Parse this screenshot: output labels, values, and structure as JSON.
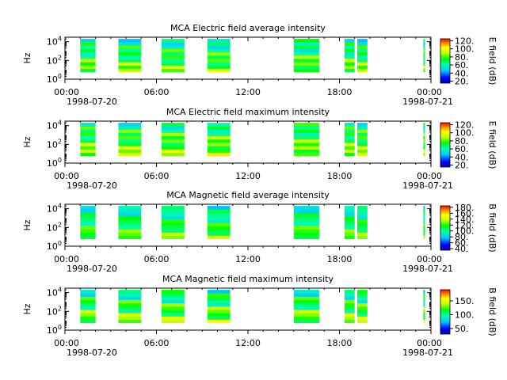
{
  "chart_data": [
    {
      "type": "heatmap",
      "title": "MCA  Electric field average intensity",
      "ylabel": "Hz",
      "colorbar_label": "E field (dB)",
      "colorbar_ticks": [
        "20.",
        "40.",
        "60.",
        "80.",
        "100.",
        "120."
      ],
      "colorbar_range": [
        15,
        125
      ],
      "yticks": [
        {
          "base": "10",
          "exp": "0"
        },
        {
          "base": "10",
          "exp": "2"
        },
        {
          "base": "10",
          "exp": "4"
        }
      ],
      "ylim": [
        1,
        30000
      ],
      "yscale": "log",
      "xticks": [
        "00:00",
        "06:00",
        "12:00",
        "18:00",
        "00:00"
      ],
      "xtick_dates": [
        "1998-07-20",
        "1998-07-21"
      ],
      "xlim": [
        "1998-07-20T00:00",
        "1998-07-21T00:00"
      ],
      "data_intervals": [
        [
          "01:00",
          "02:00"
        ],
        [
          "03:30",
          "05:00"
        ],
        [
          "06:20",
          "07:50"
        ],
        [
          "09:20",
          "10:50"
        ],
        [
          "15:00",
          "16:40"
        ],
        [
          "18:20",
          "19:00"
        ],
        [
          "19:10",
          "19:50"
        ],
        [
          "23:30",
          "23:36"
        ]
      ],
      "intensity_levels_dB": [
        70,
        90,
        80,
        100,
        75
      ]
    },
    {
      "type": "heatmap",
      "title": "MCA  Electric field maximum intensity",
      "ylabel": "Hz",
      "colorbar_label": "E field (dB)",
      "colorbar_ticks": [
        "20.",
        "40.",
        "60.",
        "80.",
        "100.",
        "120."
      ],
      "colorbar_range": [
        15,
        125
      ],
      "yticks": [
        {
          "base": "10",
          "exp": "0"
        },
        {
          "base": "10",
          "exp": "2"
        },
        {
          "base": "10",
          "exp": "4"
        }
      ],
      "ylim": [
        1,
        30000
      ],
      "yscale": "log",
      "xticks": [
        "00:00",
        "06:00",
        "12:00",
        "18:00",
        "00:00"
      ],
      "xtick_dates": [
        "1998-07-20",
        "1998-07-21"
      ],
      "xlim": [
        "1998-07-20T00:00",
        "1998-07-21T00:00"
      ],
      "data_intervals": [
        [
          "01:00",
          "02:00"
        ],
        [
          "03:30",
          "05:00"
        ],
        [
          "06:20",
          "07:50"
        ],
        [
          "09:20",
          "10:50"
        ],
        [
          "15:00",
          "16:40"
        ],
        [
          "18:20",
          "19:00"
        ],
        [
          "19:10",
          "19:50"
        ],
        [
          "23:30",
          "23:36"
        ]
      ],
      "intensity_levels_dB": [
        75,
        95,
        85,
        105,
        80
      ]
    },
    {
      "type": "heatmap",
      "title": "MCA  Magnetic field average intensity",
      "ylabel": "Hz",
      "colorbar_label": "B field (dB)",
      "colorbar_ticks": [
        "40.",
        "60.",
        "80.",
        "100.",
        "120.",
        "140.",
        "160.",
        "180."
      ],
      "colorbar_range": [
        35,
        185
      ],
      "yticks": [
        {
          "base": "10",
          "exp": "0"
        },
        {
          "base": "10",
          "exp": "2"
        },
        {
          "base": "10",
          "exp": "4"
        }
      ],
      "ylim": [
        1,
        30000
      ],
      "yscale": "log",
      "xticks": [
        "00:00",
        "06:00",
        "12:00",
        "18:00",
        "00:00"
      ],
      "xtick_dates": [
        "1998-07-20",
        "1998-07-21"
      ],
      "xlim": [
        "1998-07-20T00:00",
        "1998-07-21T00:00"
      ],
      "data_intervals": [
        [
          "01:00",
          "02:00"
        ],
        [
          "03:30",
          "05:00"
        ],
        [
          "06:20",
          "07:50"
        ],
        [
          "09:20",
          "10:50"
        ],
        [
          "15:00",
          "16:40"
        ],
        [
          "18:20",
          "19:00"
        ],
        [
          "19:10",
          "19:50"
        ],
        [
          "23:30",
          "23:36"
        ]
      ],
      "intensity_levels_dB": [
        110,
        120,
        130,
        140
      ]
    },
    {
      "type": "heatmap",
      "title": "MCA  Magnetic field maximum intensity",
      "ylabel": "Hz",
      "colorbar_label": "B field (dB)",
      "colorbar_ticks": [
        "50.",
        "100.",
        "150."
      ],
      "colorbar_range": [
        30,
        190
      ],
      "yticks": [
        {
          "base": "10",
          "exp": "0"
        },
        {
          "base": "10",
          "exp": "2"
        },
        {
          "base": "10",
          "exp": "4"
        }
      ],
      "ylim": [
        1,
        30000
      ],
      "yscale": "log",
      "xticks": [
        "00:00",
        "06:00",
        "12:00",
        "18:00",
        "00:00"
      ],
      "xtick_dates": [
        "1998-07-20",
        "1998-07-21"
      ],
      "xlim": [
        "1998-07-20T00:00",
        "1998-07-21T00:00"
      ],
      "data_intervals": [
        [
          "01:00",
          "02:00"
        ],
        [
          "03:30",
          "05:00"
        ],
        [
          "06:20",
          "07:50"
        ],
        [
          "09:20",
          "10:50"
        ],
        [
          "15:00",
          "16:40"
        ],
        [
          "18:20",
          "19:00"
        ],
        [
          "19:10",
          "19:50"
        ],
        [
          "23:30",
          "23:36"
        ]
      ],
      "intensity_levels_dB": [
        110,
        125,
        140,
        155
      ]
    }
  ]
}
